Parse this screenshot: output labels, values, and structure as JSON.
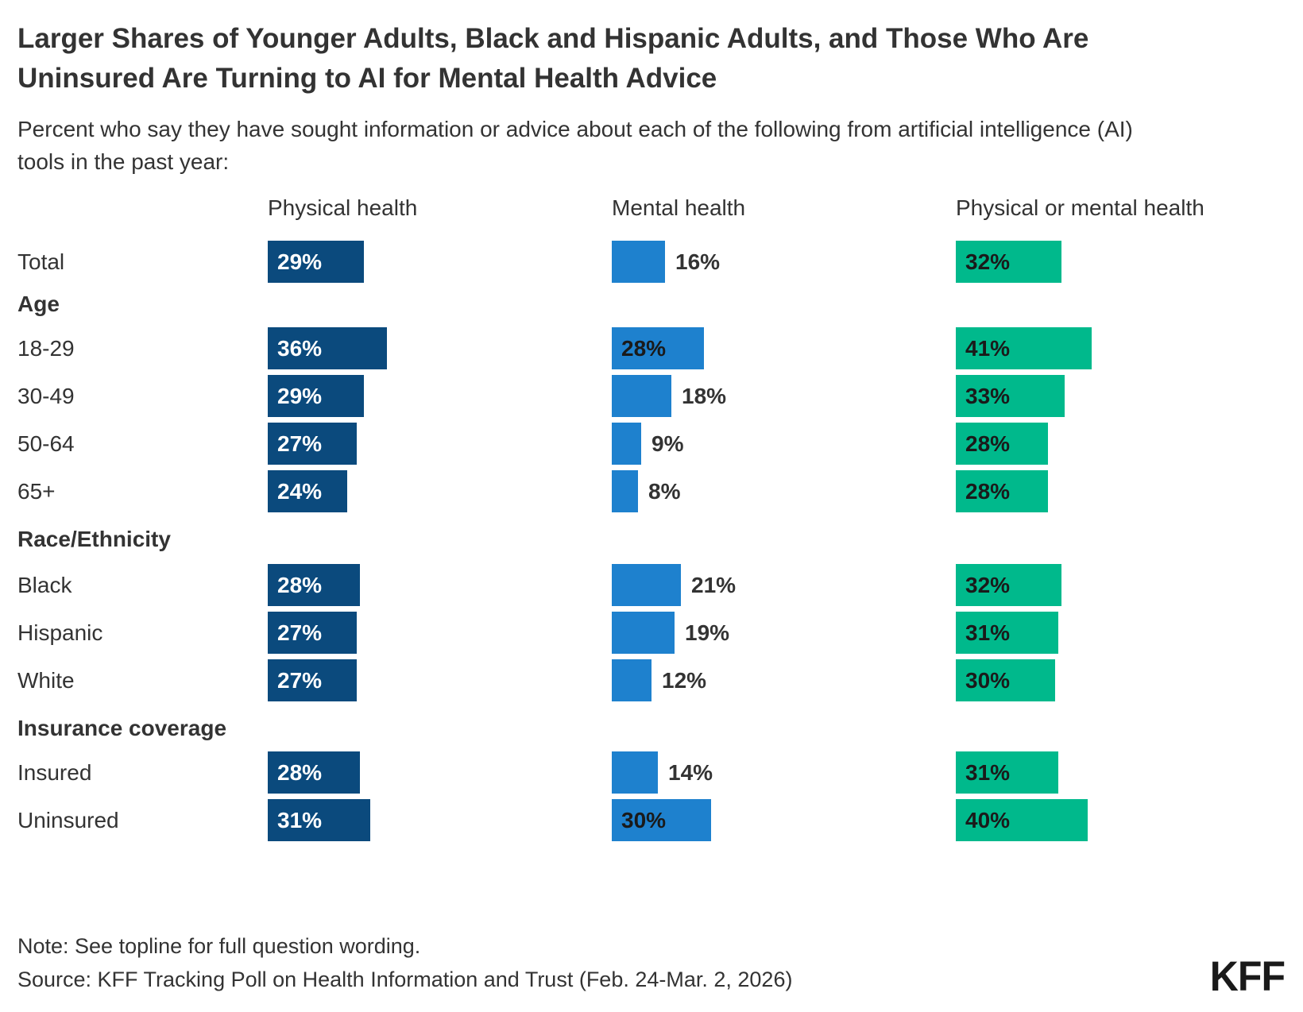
{
  "chart_data": {
    "type": "bar",
    "orientation": "horizontal",
    "unit": "%",
    "title": "Larger Shares of Younger Adults, Black and Hispanic Adults, and Those Who Are Uninsured Are Turning to AI for Mental Health Advice",
    "subtitle": "Percent who say they have sought information or advice about each of the following from artificial intelligence (AI) tools in the past year:",
    "legend_position": "column-headers",
    "xlim": [
      0,
      48
    ],
    "value_labels": true,
    "series": [
      {
        "name": "Physical health",
        "color": "#0B4A7D",
        "inside_label_color": "#FFFFFF"
      },
      {
        "name": "Mental health",
        "color": "#1E81CE",
        "inside_label_color": "#1A1A1A",
        "outside_label_color": "#333333",
        "label_inside_min_value": 28
      },
      {
        "name": "Physical or mental health",
        "color": "#00B98C",
        "inside_label_color": "#1A1A1A"
      }
    ],
    "rows": [
      {
        "kind": "data",
        "label": "Total",
        "values": [
          29,
          16,
          32
        ]
      },
      {
        "kind": "section",
        "label": "Age"
      },
      {
        "kind": "data",
        "label": "18-29",
        "values": [
          36,
          28,
          41
        ]
      },
      {
        "kind": "data",
        "label": "30-49",
        "values": [
          29,
          18,
          33
        ]
      },
      {
        "kind": "data",
        "label": "50-64",
        "values": [
          27,
          9,
          28
        ]
      },
      {
        "kind": "data",
        "label": "65+",
        "values": [
          24,
          8,
          28
        ]
      },
      {
        "kind": "section",
        "label": "Race/Ethnicity"
      },
      {
        "kind": "data",
        "label": "Black",
        "values": [
          28,
          21,
          32
        ]
      },
      {
        "kind": "data",
        "label": "Hispanic",
        "values": [
          27,
          19,
          31
        ]
      },
      {
        "kind": "data",
        "label": "White",
        "values": [
          27,
          12,
          30
        ]
      },
      {
        "kind": "section",
        "label": "Insurance coverage"
      },
      {
        "kind": "data",
        "label": "Insured",
        "values": [
          28,
          14,
          31
        ]
      },
      {
        "kind": "data",
        "label": "Uninsured",
        "values": [
          31,
          30,
          40
        ]
      }
    ]
  },
  "footer": {
    "note": "Note: See topline for full question wording.",
    "source": "Source: KFF Tracking Poll on Health Information and Trust (Feb. 24-Mar. 2, 2026)",
    "logo": "KFF"
  }
}
